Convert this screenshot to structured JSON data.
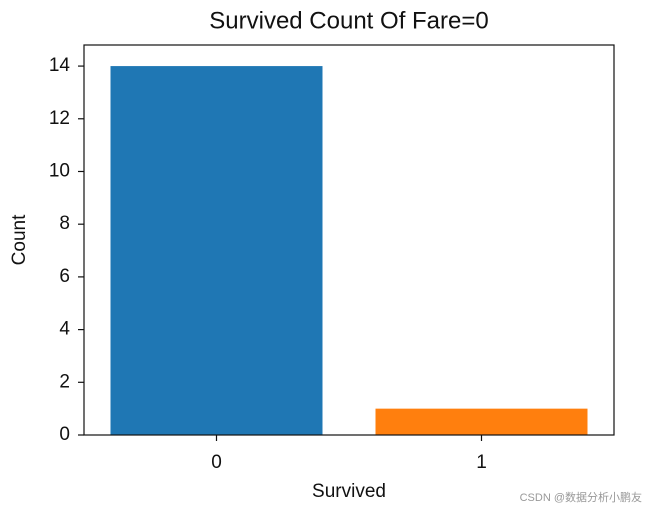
{
  "chart_data": {
    "type": "bar",
    "title": "Survived Count Of Fare=0",
    "x_label": "Survived",
    "y_label": "Count",
    "categories": [
      "0",
      "1"
    ],
    "values": [
      14,
      1
    ],
    "colors": [
      "#1f77b4",
      "#ff7f0e"
    ],
    "ylim": [
      0,
      14.8
    ],
    "yticks": [
      0,
      2,
      4,
      6,
      8,
      10,
      12,
      14
    ]
  },
  "watermark": "CSDN @数据分析小鹏友"
}
